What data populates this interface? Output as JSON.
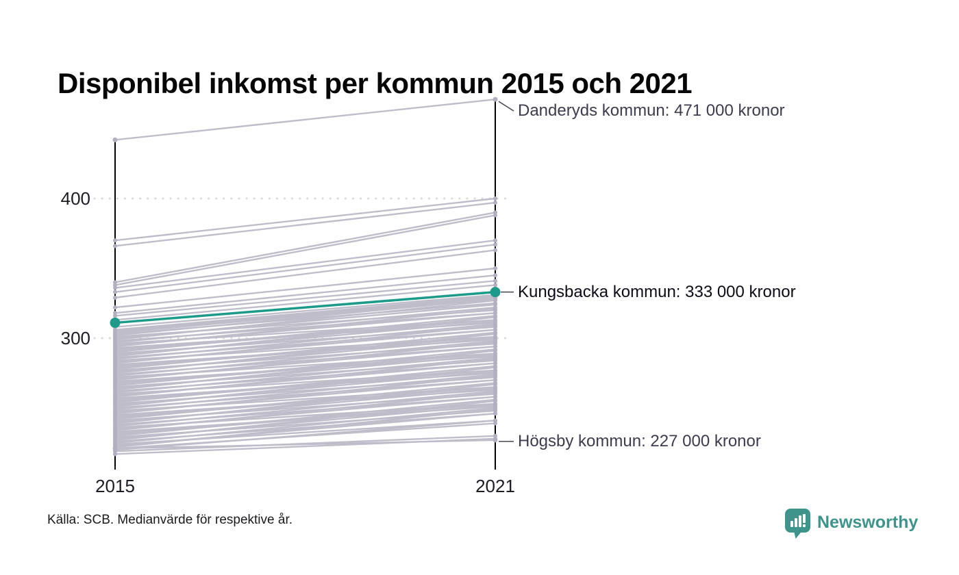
{
  "title": "Disponibel inkomst per kommun 2015 och 2021",
  "source": "Källa: SCB. Medianvärde för respektive år.",
  "branding": {
    "name": "Newsworthy",
    "color": "#3e938b"
  },
  "colors": {
    "background_line": "#bfbdca",
    "background_dot": "#b2b0c0",
    "highlight": "#1d9a8a",
    "axis": "#000000",
    "grid": "#d9d9d9",
    "leader": "#44444f"
  },
  "chart_data": {
    "type": "line",
    "subtype": "slope",
    "title": "Disponibel inkomst per kommun 2015 och 2021",
    "x": [
      2015,
      2021
    ],
    "x_labels": [
      "2015",
      "2021"
    ],
    "unit": "tusen kronor (medianvärde)",
    "ylim": [
      210,
      480
    ],
    "grid": "dotted horizontal at yticks",
    "yticks": [
      {
        "value": 400,
        "label": "400"
      },
      {
        "value": 300,
        "label": "300"
      }
    ],
    "highlight_series": {
      "name": "Kungsbacka kommun",
      "values": [
        311,
        333
      ],
      "label": "Kungsbacka kommun: 333 000 kronor"
    },
    "annotated_series": [
      {
        "name": "Danderyds kommun",
        "values": [
          442,
          471
        ],
        "label": "Danderyds kommun: 471 000 kronor",
        "position": "top"
      },
      {
        "name": "Högsby kommun",
        "values": [
          221,
          227
        ],
        "label": "Högsby kommun: 227 000 kronor",
        "position": "bottom"
      }
    ],
    "background_series": [
      [
        370,
        400
      ],
      [
        366,
        397
      ],
      [
        340,
        390
      ],
      [
        338,
        388
      ],
      [
        336,
        370
      ],
      [
        333,
        367
      ],
      [
        329,
        363
      ],
      [
        322,
        350
      ],
      [
        318,
        345
      ],
      [
        316,
        341
      ],
      [
        313,
        338
      ],
      [
        308,
        331
      ],
      [
        306,
        330
      ],
      [
        305,
        329
      ],
      [
        304,
        328
      ],
      [
        303,
        325
      ],
      [
        302,
        328
      ],
      [
        301,
        320
      ],
      [
        300,
        324
      ],
      [
        299,
        327
      ],
      [
        298,
        318
      ],
      [
        297,
        322
      ],
      [
        296,
        313
      ],
      [
        295,
        318
      ],
      [
        294,
        321
      ],
      [
        293,
        311
      ],
      [
        292,
        313
      ],
      [
        291,
        313
      ],
      [
        290,
        316
      ],
      [
        289,
        308
      ],
      [
        288,
        312
      ],
      [
        287,
        315
      ],
      [
        286,
        306
      ],
      [
        285,
        310
      ],
      [
        284,
        301
      ],
      [
        283,
        306
      ],
      [
        282,
        309
      ],
      [
        281,
        299
      ],
      [
        280,
        301
      ],
      [
        279,
        301
      ],
      [
        278,
        304
      ],
      [
        277,
        296
      ],
      [
        276,
        300
      ],
      [
        275,
        303
      ],
      [
        274,
        294
      ],
      [
        273,
        298
      ],
      [
        272,
        289
      ],
      [
        271,
        294
      ],
      [
        270,
        297
      ],
      [
        269,
        287
      ],
      [
        268,
        289
      ],
      [
        267,
        289
      ],
      [
        266,
        292
      ],
      [
        265,
        284
      ],
      [
        264,
        288
      ],
      [
        263,
        291
      ],
      [
        262,
        282
      ],
      [
        261,
        286
      ],
      [
        260,
        277
      ],
      [
        259,
        282
      ],
      [
        258,
        285
      ],
      [
        257,
        275
      ],
      [
        256,
        277
      ],
      [
        255,
        277
      ],
      [
        254,
        280
      ],
      [
        253,
        272
      ],
      [
        252,
        276
      ],
      [
        251,
        279
      ],
      [
        250,
        270
      ],
      [
        249,
        274
      ],
      [
        248,
        265
      ],
      [
        247,
        270
      ],
      [
        246,
        273
      ],
      [
        245,
        263
      ],
      [
        244,
        265
      ],
      [
        243,
        265
      ],
      [
        242,
        268
      ],
      [
        241,
        260
      ],
      [
        240,
        264
      ],
      [
        239,
        267
      ],
      [
        238,
        258
      ],
      [
        237,
        262
      ],
      [
        236,
        253
      ],
      [
        235,
        258
      ],
      [
        234,
        261
      ],
      [
        233,
        251
      ],
      [
        232,
        253
      ],
      [
        231,
        253
      ],
      [
        230,
        256
      ],
      [
        229,
        248
      ],
      [
        228,
        252
      ],
      [
        227,
        255
      ],
      [
        226,
        246
      ],
      [
        225,
        250
      ],
      [
        224,
        241
      ],
      [
        223,
        246
      ],
      [
        222,
        249
      ],
      [
        221,
        239
      ],
      [
        220,
        241
      ],
      [
        219,
        230
      ],
      [
        217,
        228
      ]
    ]
  }
}
